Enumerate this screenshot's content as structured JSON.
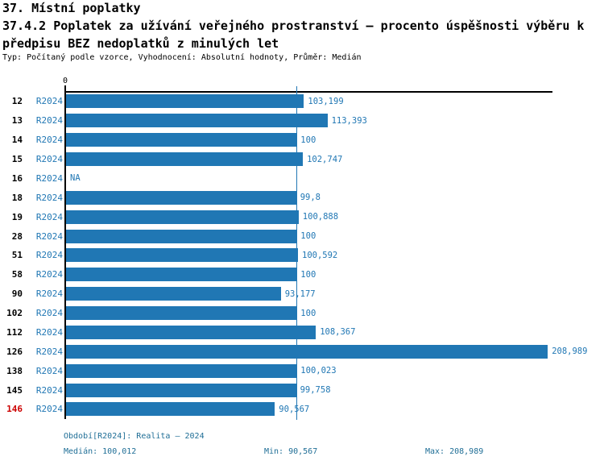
{
  "header": {
    "title": "37. Místní poplatky",
    "subtitle_line1": "37.4.2 Poplatek za užívání veřejného prostranství – procento úspěšnosti výběru k",
    "subtitle_line2": "předpisu BEZ nedoplatků z minulých let",
    "meta": "Typ: Počítaný podle vzorce, Vyhodnocení: Absolutní hodnoty, Průměr: Medián"
  },
  "chart_data": {
    "type": "bar",
    "orientation": "horizontal",
    "title": "37.4.2 Poplatek za užívání veřejného prostranství – procento úspěšnosti výběru k předpisu BEZ nedoplatků z minulých let",
    "axis": {
      "min": 0,
      "max": 211,
      "zero_tick_label": "0"
    },
    "series_name": "R2024",
    "median_value": 100.012,
    "rows": [
      {
        "id": "12",
        "period": "R2024",
        "value": 103.199,
        "label": "103,199",
        "highlight": false
      },
      {
        "id": "13",
        "period": "R2024",
        "value": 113.393,
        "label": "113,393",
        "highlight": false
      },
      {
        "id": "14",
        "period": "R2024",
        "value": 100,
        "label": "100",
        "highlight": false
      },
      {
        "id": "15",
        "period": "R2024",
        "value": 102.747,
        "label": "102,747",
        "highlight": false
      },
      {
        "id": "16",
        "period": "R2024",
        "value": null,
        "label": "NA",
        "highlight": false
      },
      {
        "id": "18",
        "period": "R2024",
        "value": 99.8,
        "label": "99,8",
        "highlight": false
      },
      {
        "id": "19",
        "period": "R2024",
        "value": 100.888,
        "label": "100,888",
        "highlight": false
      },
      {
        "id": "28",
        "period": "R2024",
        "value": 100,
        "label": "100",
        "highlight": false
      },
      {
        "id": "51",
        "period": "R2024",
        "value": 100.592,
        "label": "100,592",
        "highlight": false
      },
      {
        "id": "58",
        "period": "R2024",
        "value": 100,
        "label": "100",
        "highlight": false
      },
      {
        "id": "90",
        "period": "R2024",
        "value": 93.177,
        "label": "93,177",
        "highlight": false
      },
      {
        "id": "102",
        "period": "R2024",
        "value": 100,
        "label": "100",
        "highlight": false
      },
      {
        "id": "112",
        "period": "R2024",
        "value": 108.367,
        "label": "108,367",
        "highlight": false
      },
      {
        "id": "126",
        "period": "R2024",
        "value": 208.989,
        "label": "208,989",
        "highlight": false
      },
      {
        "id": "138",
        "period": "R2024",
        "value": 100.023,
        "label": "100,023",
        "highlight": false
      },
      {
        "id": "145",
        "period": "R2024",
        "value": 99.758,
        "label": "99,758",
        "highlight": false
      },
      {
        "id": "146",
        "period": "R2024",
        "value": 90.567,
        "label": "90,567",
        "highlight": true
      }
    ]
  },
  "footer": {
    "period_text": "Období[R2024]: Realita – 2024",
    "median_text": "Medián: 100,012",
    "min_text": "Min: 90,567",
    "max_text": "Max: 208,989"
  },
  "colors": {
    "bar_blue": "#2077b4",
    "label_blue": "#2077b4",
    "footer_teal": "#1f6e96",
    "highlight_red": "#cc0000",
    "axis_black": "#000000"
  }
}
